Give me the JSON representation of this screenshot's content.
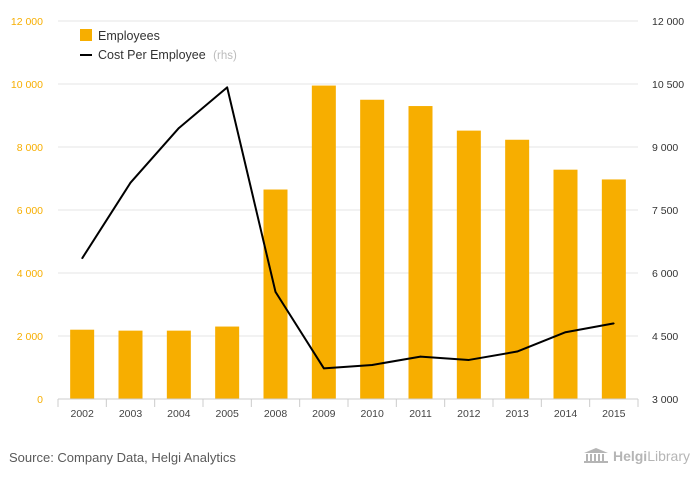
{
  "chart_data": {
    "type": "bar+line",
    "categories": [
      "2002",
      "2003",
      "2004",
      "2005",
      "2008",
      "2009",
      "2010",
      "2011",
      "2012",
      "2013",
      "2014",
      "2015"
    ],
    "series": [
      {
        "name": "Employees",
        "type": "bar",
        "axis": "left",
        "values": [
          2200,
          2170,
          2170,
          2300,
          6650,
          9950,
          9500,
          9300,
          8520,
          8230,
          7280,
          6970
        ]
      },
      {
        "name": "Cost Per Employee",
        "type": "line",
        "axis": "right",
        "values": [
          6350,
          8150,
          9450,
          10420,
          5550,
          3730,
          3810,
          4010,
          3930,
          4130,
          4590,
          4800
        ]
      }
    ],
    "left_axis": {
      "ylim": [
        0,
        12000
      ],
      "ticks": [
        "0",
        "2 000",
        "4 000",
        "6 000",
        "8 000",
        "10 000",
        "12 000"
      ]
    },
    "right_axis": {
      "ylim": [
        3000,
        12000
      ],
      "ticks": [
        "3 000",
        "4 500",
        "6 000",
        "7 500",
        "9 000",
        "10 500",
        "12 000"
      ]
    },
    "legend": {
      "position": "top-left",
      "items": [
        {
          "label": "Employees",
          "suffix": ""
        },
        {
          "label": "Cost Per Employee",
          "suffix": "(rhs)"
        }
      ]
    },
    "grid": true
  },
  "colors": {
    "bar": "#f7ae00",
    "line": "#000000",
    "left_tick": "#f7ae00",
    "right_tick": "#333333",
    "grid": "#e6e6e6",
    "axis": "#cccccc"
  },
  "footer": {
    "source": "Source: Company Data, Helgi Analytics",
    "brand_prefix": "Helgi",
    "brand_suffix": "Library",
    "logo_icon": "library-building-icon"
  }
}
